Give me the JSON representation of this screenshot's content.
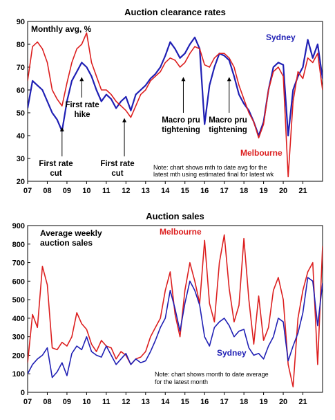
{
  "chart_data": [
    {
      "type": "line",
      "title": "Auction clearance rates",
      "ylabel": "Monthly avg, %",
      "ylim": [
        20,
        90
      ],
      "y_ticks": [
        "20",
        "30",
        "40",
        "50",
        "60",
        "70",
        "80",
        "90"
      ],
      "x_ticks": [
        "07",
        "08",
        "09",
        "10",
        "11",
        "12",
        "13",
        "14",
        "15",
        "16",
        "17",
        "18",
        "19",
        "20",
        "21"
      ],
      "xlim": [
        2007,
        2022
      ],
      "grid": false,
      "note_lines": [
        "Note: chart shows mth to date avg for the",
        "latest mth using estimated final for latest wk"
      ],
      "annotations": [
        {
          "lines": [
            "First rate",
            "cut"
          ],
          "x": 2008.75,
          "y": 44
        },
        {
          "lines": [
            "First rate",
            "hike"
          ],
          "x": 2009.75,
          "y": 66
        },
        {
          "lines": [
            "First rate",
            "cut"
          ],
          "x": 2011.92,
          "y": 48
        },
        {
          "lines": [
            "Macro pru",
            "tightening"
          ],
          "x": 2014.92,
          "y": 66
        },
        {
          "lines": [
            "Macro pru",
            "tightening"
          ],
          "x": 2017.25,
          "y": 66
        }
      ],
      "series": [
        {
          "name": "Sydney",
          "color": "#1f1fb4",
          "x": [
            2007.0,
            2007.25,
            2007.5,
            2007.75,
            2008.0,
            2008.25,
            2008.5,
            2008.75,
            2009.0,
            2009.25,
            2009.5,
            2009.75,
            2010.0,
            2010.25,
            2010.5,
            2010.75,
            2011.0,
            2011.25,
            2011.5,
            2011.75,
            2012.0,
            2012.25,
            2012.5,
            2012.75,
            2013.0,
            2013.25,
            2013.5,
            2013.75,
            2014.0,
            2014.25,
            2014.5,
            2014.75,
            2015.0,
            2015.25,
            2015.5,
            2015.75,
            2016.0,
            2016.25,
            2016.5,
            2016.75,
            2017.0,
            2017.25,
            2017.5,
            2017.75,
            2018.0,
            2018.25,
            2018.5,
            2018.75,
            2019.0,
            2019.25,
            2019.5,
            2019.75,
            2020.0,
            2020.25,
            2020.5,
            2020.75,
            2021.0,
            2021.25,
            2021.5,
            2021.75,
            2022.0
          ],
          "y": [
            52,
            64,
            62,
            60,
            55,
            50,
            47,
            42,
            55,
            64,
            68,
            72,
            70,
            66,
            60,
            55,
            58,
            56,
            52,
            55,
            57,
            51,
            58,
            60,
            62,
            65,
            67,
            70,
            75,
            81,
            78,
            74,
            76,
            80,
            83,
            78,
            45,
            62,
            70,
            76,
            75,
            73,
            66,
            58,
            54,
            51,
            46,
            40,
            46,
            60,
            70,
            72,
            71,
            40,
            60,
            66,
            70,
            82,
            74,
            80,
            65
          ]
        },
        {
          "name": "Melbourne",
          "color": "#dc1e1e",
          "x": [
            2007.0,
            2007.25,
            2007.5,
            2007.75,
            2008.0,
            2008.25,
            2008.5,
            2008.75,
            2009.0,
            2009.25,
            2009.5,
            2009.75,
            2010.0,
            2010.25,
            2010.5,
            2010.75,
            2011.0,
            2011.25,
            2011.5,
            2011.75,
            2012.0,
            2012.25,
            2012.5,
            2012.75,
            2013.0,
            2013.25,
            2013.5,
            2013.75,
            2014.0,
            2014.25,
            2014.5,
            2014.75,
            2015.0,
            2015.25,
            2015.5,
            2015.75,
            2016.0,
            2016.25,
            2016.5,
            2016.75,
            2017.0,
            2017.25,
            2017.5,
            2017.75,
            2018.0,
            2018.25,
            2018.5,
            2018.75,
            2019.0,
            2019.25,
            2019.5,
            2019.75,
            2020.0,
            2020.25,
            2020.5,
            2020.75,
            2021.0,
            2021.25,
            2021.5,
            2021.75,
            2022.0
          ],
          "y": [
            64,
            79,
            81,
            78,
            72,
            60,
            56,
            53,
            63,
            72,
            78,
            80,
            85,
            72,
            66,
            60,
            60,
            58,
            55,
            53,
            51,
            48,
            53,
            58,
            60,
            64,
            66,
            68,
            72,
            74,
            73,
            70,
            72,
            76,
            79,
            78,
            71,
            70,
            74,
            76,
            76,
            74,
            70,
            62,
            56,
            50,
            46,
            39,
            45,
            60,
            68,
            70,
            66,
            22,
            55,
            68,
            65,
            74,
            72,
            76,
            60
          ]
        }
      ]
    },
    {
      "type": "line",
      "title": "Auction sales",
      "ylabel_lines": [
        "Average weekly",
        "auction sales"
      ],
      "ylim": [
        0,
        900
      ],
      "y_ticks": [
        "0",
        "100",
        "200",
        "300",
        "400",
        "500",
        "600",
        "700",
        "800",
        "900"
      ],
      "x_ticks": [
        "07",
        "08",
        "09",
        "10",
        "11",
        "12",
        "13",
        "14",
        "15",
        "16",
        "17",
        "18",
        "19",
        "20",
        "21"
      ],
      "xlim": [
        2007,
        2022
      ],
      "grid": false,
      "note_lines": [
        "Note: chart shows month to date average",
        "for the latest month"
      ],
      "series": [
        {
          "name": "Melbourne",
          "color": "#dc1e1e",
          "x": [
            2007.0,
            2007.25,
            2007.5,
            2007.75,
            2008.0,
            2008.25,
            2008.5,
            2008.75,
            2009.0,
            2009.25,
            2009.5,
            2009.75,
            2010.0,
            2010.25,
            2010.5,
            2010.75,
            2011.0,
            2011.25,
            2011.5,
            2011.75,
            2012.0,
            2012.25,
            2012.5,
            2012.75,
            2013.0,
            2013.25,
            2013.5,
            2013.75,
            2014.0,
            2014.25,
            2014.5,
            2014.75,
            2015.0,
            2015.25,
            2015.5,
            2015.75,
            2016.0,
            2016.25,
            2016.5,
            2016.75,
            2017.0,
            2017.25,
            2017.5,
            2017.75,
            2018.0,
            2018.25,
            2018.5,
            2018.75,
            2019.0,
            2019.25,
            2019.5,
            2019.75,
            2020.0,
            2020.25,
            2020.5,
            2020.75,
            2021.0,
            2021.25,
            2021.5,
            2021.75,
            2022.0
          ],
          "y": [
            160,
            420,
            350,
            680,
            580,
            240,
            230,
            270,
            250,
            300,
            430,
            370,
            340,
            260,
            220,
            280,
            250,
            240,
            180,
            220,
            200,
            150,
            180,
            190,
            220,
            300,
            350,
            400,
            550,
            650,
            420,
            300,
            550,
            700,
            600,
            480,
            820,
            480,
            380,
            700,
            850,
            560,
            380,
            470,
            830,
            500,
            260,
            520,
            280,
            350,
            550,
            620,
            500,
            150,
            30,
            400,
            550,
            650,
            700,
            150,
            790
          ]
        },
        {
          "name": "Sydney",
          "color": "#1f1fb4",
          "x": [
            2007.0,
            2007.25,
            2007.5,
            2007.75,
            2008.0,
            2008.25,
            2008.5,
            2008.75,
            2009.0,
            2009.25,
            2009.5,
            2009.75,
            2010.0,
            2010.25,
            2010.5,
            2010.75,
            2011.0,
            2011.25,
            2011.5,
            2011.75,
            2012.0,
            2012.25,
            2012.5,
            2012.75,
            2013.0,
            2013.25,
            2013.5,
            2013.75,
            2014.0,
            2014.25,
            2014.5,
            2014.75,
            2015.0,
            2015.25,
            2015.5,
            2015.75,
            2016.0,
            2016.25,
            2016.5,
            2016.75,
            2017.0,
            2017.25,
            2017.5,
            2017.75,
            2018.0,
            2018.25,
            2018.5,
            2018.75,
            2019.0,
            2019.25,
            2019.5,
            2019.75,
            2020.0,
            2020.25,
            2020.5,
            2020.75,
            2021.0,
            2021.25,
            2021.5,
            2021.75,
            2022.0
          ],
          "y": [
            100,
            150,
            180,
            200,
            240,
            80,
            110,
            160,
            90,
            210,
            250,
            230,
            300,
            220,
            200,
            190,
            250,
            200,
            150,
            180,
            210,
            150,
            180,
            160,
            170,
            220,
            280,
            350,
            400,
            550,
            450,
            330,
            480,
            600,
            550,
            470,
            300,
            250,
            350,
            380,
            400,
            360,
            300,
            330,
            340,
            240,
            200,
            210,
            180,
            250,
            300,
            400,
            380,
            170,
            250,
            320,
            430,
            620,
            600,
            360,
            590
          ]
        }
      ]
    }
  ]
}
